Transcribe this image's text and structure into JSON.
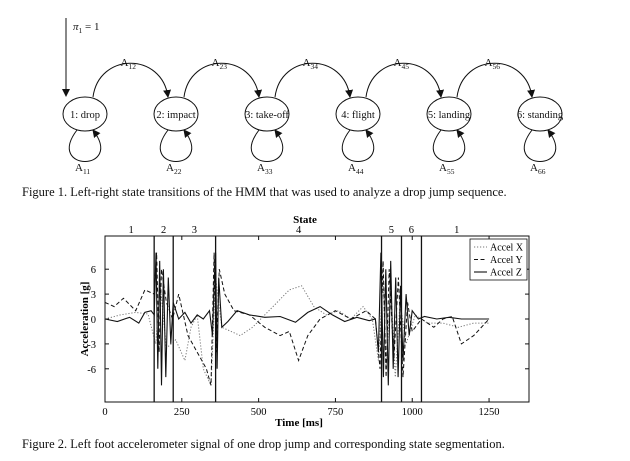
{
  "figure1": {
    "initial_label": "π",
    "initial_sub": "1",
    "initial_value": " = 1",
    "states": [
      "1: drop",
      "2: impact",
      "3: take-off",
      "4: flight",
      "5: landing",
      "6: standing"
    ],
    "forward_labels": [
      {
        "main": "A",
        "sub": "12"
      },
      {
        "main": "A",
        "sub": "23"
      },
      {
        "main": "A",
        "sub": "34"
      },
      {
        "main": "A",
        "sub": "45"
      },
      {
        "main": "A",
        "sub": "56"
      }
    ],
    "self_labels": [
      {
        "main": "A",
        "sub": "11"
      },
      {
        "main": "A",
        "sub": "22"
      },
      {
        "main": "A",
        "sub": "33"
      },
      {
        "main": "A",
        "sub": "44"
      },
      {
        "main": "A",
        "sub": "55"
      },
      {
        "main": "A",
        "sub": "66"
      }
    ],
    "caption": "Figure 1.  Left-right state transitions of the HMM that was used to analyze a drop jump sequence."
  },
  "figure2": {
    "caption": "Figure 2.  Left foot accelerometer signal of one drop jump and corresponding state segmentation."
  },
  "chart_data": {
    "type": "line",
    "title": "State",
    "xlabel": "Time [ms]",
    "ylabel": "Acceleration [g]",
    "xlim": [
      0,
      1380
    ],
    "ylim": [
      -10,
      10
    ],
    "x_ticks": [
      0,
      250,
      500,
      750,
      1000,
      1250
    ],
    "y_ticks": [
      6,
      3,
      0,
      -3,
      -6
    ],
    "legend_position": "top-right",
    "state_boundaries": [
      160,
      222,
      360,
      900,
      965,
      1030
    ],
    "state_labels": [
      {
        "label": "1",
        "x": 85
      },
      {
        "label": "2",
        "x": 191
      },
      {
        "label": "3",
        "x": 291
      },
      {
        "label": "4",
        "x": 630
      },
      {
        "label": "5",
        "x": 932
      },
      {
        "label": "6",
        "x": 997
      },
      {
        "label": "1",
        "x": 1145
      }
    ],
    "series": [
      {
        "name": "Accel X",
        "style": "dotted",
        "x": [
          0,
          50,
          100,
          140,
          165,
          180,
          200,
          230,
          260,
          280,
          300,
          320,
          345,
          360,
          380,
          410,
          440,
          480,
          520,
          560,
          600,
          640,
          680,
          720,
          760,
          800,
          840,
          870,
          890,
          905,
          915,
          930,
          945,
          960,
          980,
          1010,
          1050,
          1100,
          1150,
          1200,
          1250
        ],
        "y": [
          0,
          0.5,
          0.8,
          0.6,
          -3,
          4,
          -3.5,
          -2.5,
          -5,
          -1,
          0.5,
          -6,
          -8,
          5,
          -1,
          -1.5,
          -2,
          -1,
          0.5,
          2,
          3.5,
          4,
          1.5,
          0.5,
          1,
          0,
          1.5,
          0,
          -5,
          5,
          -6,
          4,
          -7,
          2,
          -3,
          0.5,
          -0.5,
          -0.5,
          -1,
          -0.5,
          -0.5
        ]
      },
      {
        "name": "Accel Y",
        "style": "dashed",
        "x": [
          0,
          30,
          60,
          100,
          130,
          160,
          168,
          176,
          184,
          200,
          220,
          240,
          270,
          300,
          330,
          345,
          355,
          362,
          372,
          390,
          420,
          470,
          520,
          570,
          600,
          630,
          660,
          700,
          750,
          800,
          850,
          880,
          895,
          905,
          915,
          925,
          940,
          955,
          970,
          985,
          1000,
          1030,
          1070,
          1100,
          1130,
          1160,
          1200,
          1250
        ],
        "y": [
          2,
          1.5,
          2.5,
          1,
          3.5,
          3,
          8,
          -4,
          6,
          2,
          0,
          3,
          -2,
          -4,
          -6,
          -8,
          8,
          -4,
          6,
          3,
          1,
          0.5,
          -1,
          -2,
          -1.5,
          -5,
          -2,
          0,
          1,
          0,
          1,
          0,
          -6,
          7,
          -7,
          6,
          -5,
          5,
          -7,
          2,
          -1.5,
          0,
          -1,
          0,
          0.3,
          -3,
          -2,
          0
        ]
      },
      {
        "name": "Accel Z",
        "style": "solid",
        "x": [
          0,
          40,
          80,
          110,
          130,
          150,
          160,
          166,
          172,
          178,
          184,
          190,
          198,
          206,
          214,
          222,
          240,
          260,
          280,
          300,
          320,
          340,
          350,
          355,
          360,
          365,
          370,
          380,
          400,
          430,
          470,
          520,
          570,
          620,
          660,
          700,
          740,
          780,
          820,
          860,
          880,
          890,
          898,
          906,
          914,
          922,
          930,
          938,
          946,
          954,
          962,
          970,
          980,
          990,
          1000,
          1010,
          1020,
          1040,
          1080,
          1120,
          1160,
          1200,
          1250
        ],
        "y": [
          0,
          -0.3,
          0.2,
          -0.5,
          0.8,
          1,
          0.5,
          8,
          -6,
          7,
          -8,
          6,
          -7,
          5,
          -3,
          2,
          0,
          0.8,
          -0.5,
          0.5,
          0,
          1,
          -2,
          4,
          8,
          -6,
          5,
          -1,
          -0.3,
          1,
          0.5,
          0.2,
          0.3,
          -0.4,
          0.8,
          1.5,
          0.5,
          -0.3,
          0.2,
          -0.2,
          0,
          -4,
          8,
          -7,
          6,
          -8,
          7,
          -6,
          5,
          -7,
          4,
          -5,
          3,
          -2,
          1,
          0.5,
          0,
          0.3,
          0,
          0.2,
          0,
          0,
          0
        ]
      }
    ]
  }
}
